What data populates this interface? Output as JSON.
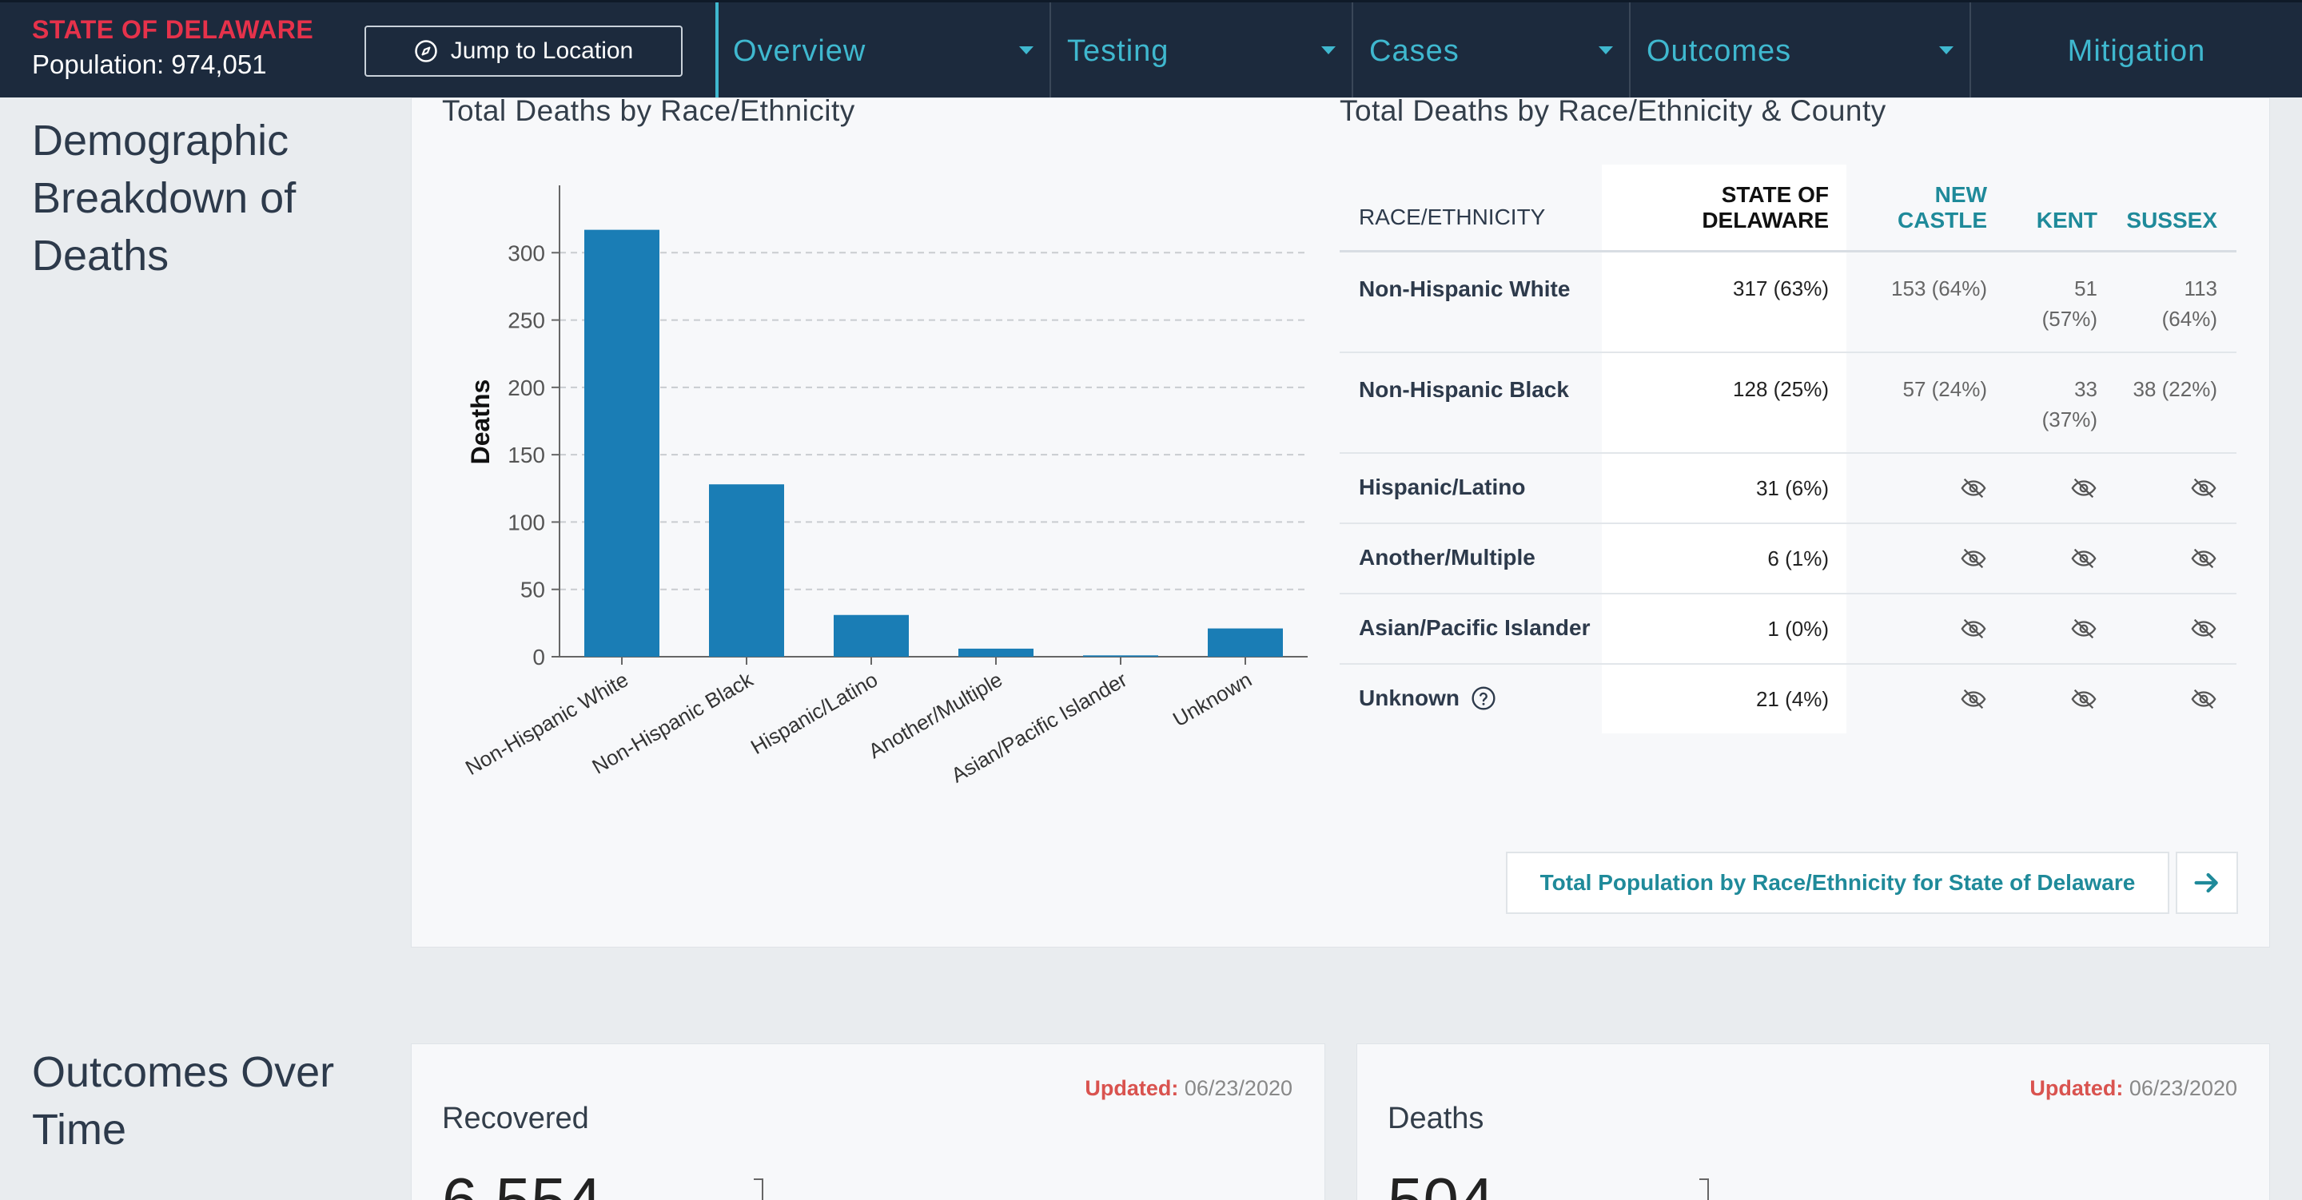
{
  "header": {
    "state_name": "STATE OF DELAWARE",
    "population": "Population: 974,051",
    "jump_button": "Jump to Location",
    "nav": [
      "Overview",
      "Testing",
      "Cases",
      "Outcomes",
      "Mitigation"
    ]
  },
  "sections": {
    "demographic": "Demographic Breakdown of Deaths",
    "outcomes": "Outcomes Over Time"
  },
  "chart_card": {
    "left_title": "Total Deaths by Race/Ethnicity",
    "right_title": "Total Deaths by Race/Ethnicity & County"
  },
  "chart_data": {
    "type": "bar",
    "title": "Total Deaths by Race/Ethnicity",
    "ylabel": "Deaths",
    "xlabel": "",
    "categories": [
      "Non-Hispanic White",
      "Non-Hispanic Black",
      "Hispanic/Latino",
      "Another/Multiple",
      "Asian/Pacific Islander",
      "Unknown"
    ],
    "values": [
      317,
      128,
      31,
      6,
      1,
      21
    ],
    "ylim": [
      0,
      350
    ],
    "yticks": [
      0,
      50,
      100,
      150,
      200,
      250,
      300
    ],
    "grid": "horizontal dashed",
    "color": "#1a7db5"
  },
  "table": {
    "headers": {
      "race": "RACE/ETHNICITY",
      "state_line1": "STATE OF",
      "state_line2": "DELAWARE",
      "nc_line1": "NEW",
      "nc_line2": "CASTLE",
      "kent": "KENT",
      "sussex": "SUSSEX"
    },
    "rows": [
      {
        "label": "Non-Hispanic White",
        "state": "317 (63%)",
        "new_castle": "153 (64%)",
        "kent_1": "51",
        "kent_2": "(57%)",
        "sussex_1": "113",
        "sussex_2": "(64%)"
      },
      {
        "label": "Non-Hispanic Black",
        "state": "128 (25%)",
        "new_castle": "57 (24%)",
        "kent_1": "33",
        "kent_2": "(37%)",
        "sussex_1": "38 (22%)",
        "sussex_2": ""
      },
      {
        "label": "Hispanic/Latino",
        "state": "31 (6%)"
      },
      {
        "label": "Another/Multiple",
        "state": "6 (1%)"
      },
      {
        "label": "Asian/Pacific Islander",
        "state": "1 (0%)"
      },
      {
        "label": "Unknown",
        "state": "21 (4%)"
      }
    ],
    "hidden_icon": "eye-slash-icon",
    "help_icon": "question-circle-icon"
  },
  "population_link": "Total Population by Race/Ethnicity for State of Delaware",
  "outcome_cards": {
    "recovered": {
      "title": "Recovered",
      "updated_label": "Updated:",
      "updated_date": "06/23/2020",
      "value": "6,554"
    },
    "deaths": {
      "title": "Deaths",
      "updated_label": "Updated:",
      "updated_date": "06/23/2020",
      "value": "504"
    }
  },
  "colors": {
    "nav_bg": "#1c2a3d",
    "accent": "#3fb8cf",
    "brand_red": "#e6324b",
    "bar": "#1a7db5",
    "link": "#1f8a9a"
  }
}
